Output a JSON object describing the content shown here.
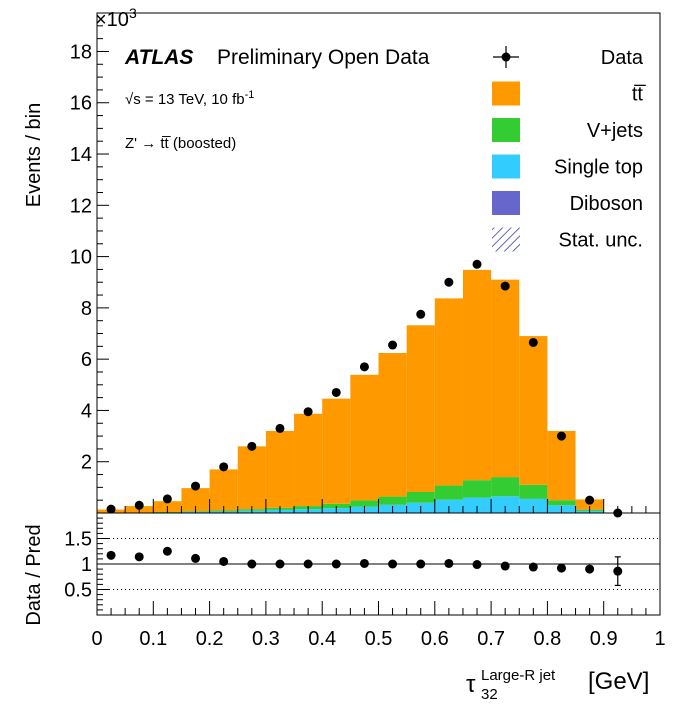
{
  "chart_data": [
    {
      "type": "bar",
      "stacked": true,
      "x_edges": [
        0.0,
        0.05,
        0.1,
        0.15,
        0.2,
        0.25,
        0.3,
        0.35,
        0.4,
        0.45,
        0.5,
        0.55,
        0.6,
        0.65,
        0.7,
        0.75,
        0.8,
        0.85,
        0.9,
        0.95,
        1.0
      ],
      "series": [
        {
          "name": "Diboson",
          "color": "#6666cc",
          "values": [
            0,
            0,
            0,
            0,
            0,
            0,
            0,
            0,
            0,
            0,
            0,
            0,
            0,
            0,
            0,
            0,
            0,
            0,
            0,
            0
          ]
        },
        {
          "name": "Single top",
          "color": "#33ccff",
          "values": [
            0.005,
            0.01,
            0.02,
            0.04,
            0.06,
            0.09,
            0.12,
            0.15,
            0.19,
            0.25,
            0.32,
            0.4,
            0.52,
            0.6,
            0.65,
            0.55,
            0.3,
            0.08,
            0,
            0
          ]
        },
        {
          "name": "V+jets",
          "color": "#33cc33",
          "values": [
            0.01,
            0.01,
            0.02,
            0.03,
            0.04,
            0.06,
            0.08,
            0.12,
            0.17,
            0.24,
            0.32,
            0.42,
            0.55,
            0.68,
            0.75,
            0.55,
            0.2,
            0.05,
            0,
            0
          ]
        },
        {
          "name": "tt̅",
          "color": "#ff9900",
          "values": [
            0.12,
            0.25,
            0.42,
            0.9,
            1.6,
            2.45,
            3.0,
            3.6,
            4.1,
            4.9,
            5.6,
            6.5,
            7.3,
            8.2,
            7.7,
            5.8,
            2.7,
            0.4,
            0,
            0
          ]
        }
      ],
      "data_points": {
        "name": "Data",
        "x": [
          0.025,
          0.075,
          0.125,
          0.175,
          0.225,
          0.275,
          0.325,
          0.375,
          0.425,
          0.475,
          0.525,
          0.575,
          0.625,
          0.675,
          0.725,
          0.775,
          0.825,
          0.875,
          0.925
        ],
        "y": [
          0.15,
          0.3,
          0.55,
          1.05,
          1.8,
          2.6,
          3.3,
          3.95,
          4.7,
          5.7,
          6.55,
          7.75,
          9.0,
          9.7,
          8.85,
          6.65,
          3.0,
          0.5,
          0.0
        ]
      },
      "xlim": [
        0,
        1
      ],
      "ylim": [
        0,
        19.5
      ],
      "yticks": [
        "2",
        "4",
        "6",
        "8",
        "10",
        "12",
        "14",
        "16",
        "18"
      ],
      "ylabel": "Events / bin",
      "y_multiplier": "×10",
      "y_multiplier_exp": "3",
      "legend_placement": "top-right",
      "legend": [
        {
          "label": "Data",
          "kind": "data"
        },
        {
          "label": "tt̅",
          "kind": "fill",
          "color": "#ff9900"
        },
        {
          "label": "V+jets",
          "kind": "fill",
          "color": "#33cc33"
        },
        {
          "label": "Single top",
          "kind": "fill",
          "color": "#33ccff"
        },
        {
          "label": "Diboson",
          "kind": "fill",
          "color": "#6666cc"
        },
        {
          "label": "Stat. unc.",
          "kind": "hatch",
          "color": "#3333aa"
        }
      ],
      "annotations": {
        "atlas": "ATLAS",
        "preliminary": "Preliminary Open Data",
        "energy": "√s = 13 TeV, 10 fb",
        "energy_exp": "-1",
        "process": "Z' → tt̅ (boosted)"
      }
    },
    {
      "type": "scatter",
      "x": [
        0.025,
        0.075,
        0.125,
        0.175,
        0.225,
        0.275,
        0.325,
        0.375,
        0.425,
        0.475,
        0.525,
        0.575,
        0.625,
        0.675,
        0.725,
        0.775,
        0.825,
        0.875,
        0.925
      ],
      "y": [
        1.17,
        1.14,
        1.25,
        1.11,
        1.05,
        1.0,
        1.0,
        1.0,
        1.0,
        1.01,
        1.0,
        1.0,
        1.01,
        0.99,
        0.96,
        0.94,
        0.92,
        0.9,
        0.86
      ],
      "yerr": [
        0.08,
        0.05,
        0.04,
        0.03,
        0.02,
        0.02,
        0.02,
        0.02,
        0.02,
        0.02,
        0.02,
        0.02,
        0.02,
        0.02,
        0.02,
        0.02,
        0.03,
        0.06,
        0.28
      ],
      "xlim": [
        0,
        1
      ],
      "ylim": [
        0,
        2
      ],
      "yticks": [
        "0.5",
        "1",
        "1.5"
      ],
      "xticks": [
        "0",
        "0.1",
        "0.2",
        "0.3",
        "0.4",
        "0.5",
        "0.6",
        "0.7",
        "0.8",
        "0.9",
        "1"
      ],
      "ylabel": "Data / Pred",
      "xlabel": {
        "base": "τ",
        "sub": "32",
        "sup": "Large-R jet",
        "unit": "[GeV]"
      },
      "reference_line": 1,
      "dotted_lines": [
        0.5,
        1.5
      ]
    }
  ]
}
